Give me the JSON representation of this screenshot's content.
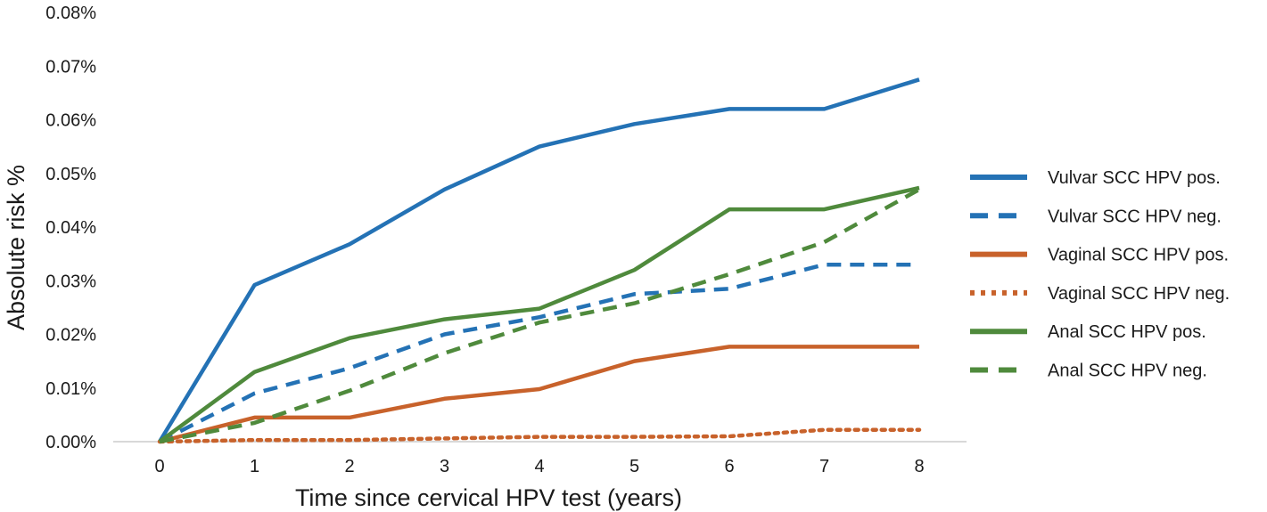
{
  "chart_data": {
    "type": "line",
    "xlabel": "Time since cervical HPV test (years)",
    "ylabel": "Absolute risk %",
    "x": [
      0,
      1,
      2,
      3,
      4,
      5,
      6,
      7,
      8
    ],
    "x_tick_labels": [
      "0",
      "1",
      "2",
      "3",
      "4",
      "5",
      "6",
      "7",
      "8"
    ],
    "ylim": [
      0,
      0.08
    ],
    "y_ticks": [
      0,
      0.01,
      0.02,
      0.03,
      0.04,
      0.05,
      0.06,
      0.07,
      0.08
    ],
    "y_tick_labels": [
      "0.00%",
      "0.01%",
      "0.02%",
      "0.03%",
      "0.04%",
      "0.05%",
      "0.06%",
      "0.07%",
      "0.08%"
    ],
    "grid": false,
    "baseline": true,
    "legend_position": "right",
    "series": [
      {
        "name": "Vulvar SCC HPV pos.",
        "color": "#2472b5",
        "dash": "solid",
        "values": [
          0,
          0.0292,
          0.0368,
          0.047,
          0.055,
          0.0592,
          0.062,
          0.062,
          0.0675
        ]
      },
      {
        "name": "Vulvar SCC HPV neg.",
        "color": "#2472b5",
        "dash": "dashed",
        "values": [
          0,
          0.009,
          0.0137,
          0.02,
          0.0232,
          0.0275,
          0.0285,
          0.033,
          0.033
        ]
      },
      {
        "name": "Vaginal SCC HPV pos.",
        "color": "#c8622b",
        "dash": "solid",
        "values": [
          0,
          0.0045,
          0.0045,
          0.008,
          0.0098,
          0.015,
          0.0177,
          0.0177,
          0.0177
        ]
      },
      {
        "name": "Vaginal SCC HPV neg.",
        "color": "#c8622b",
        "dash": "dotted",
        "values": [
          0,
          0.0003,
          0.0003,
          0.0006,
          0.0009,
          0.0009,
          0.001,
          0.0022,
          0.0022
        ]
      },
      {
        "name": "Anal SCC HPV pos.",
        "color": "#4f8a3c",
        "dash": "solid",
        "values": [
          0,
          0.013,
          0.0193,
          0.0228,
          0.0248,
          0.032,
          0.0433,
          0.0433,
          0.0473
        ]
      },
      {
        "name": "Anal SCC HPV neg.",
        "color": "#4f8a3c",
        "dash": "dashed",
        "values": [
          0,
          0.0035,
          0.0095,
          0.0165,
          0.0222,
          0.0258,
          0.0312,
          0.0372,
          0.047
        ]
      }
    ]
  }
}
